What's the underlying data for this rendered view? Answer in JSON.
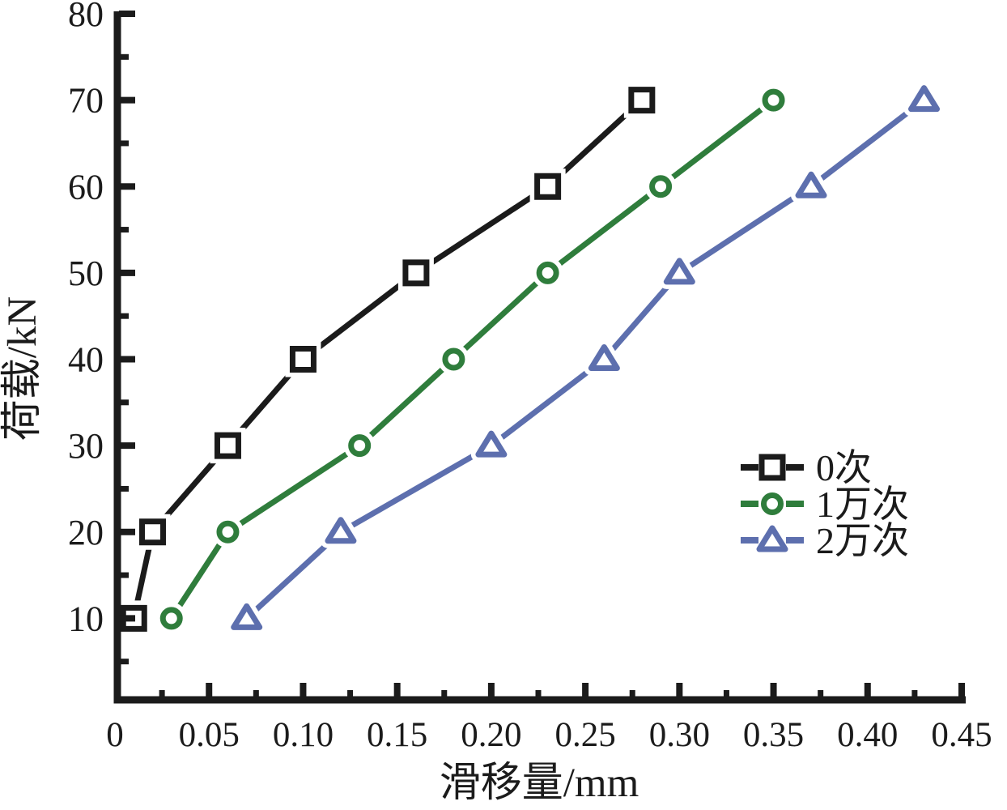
{
  "figure": {
    "background": "#ffffff"
  },
  "chart_data": {
    "type": "line",
    "title": "",
    "xlabel": "滑移量/mm",
    "ylabel": "荷载/kN",
    "xlim": [
      0,
      0.45
    ],
    "ylim": [
      0,
      80
    ],
    "grid": false,
    "legend_position": "right-center",
    "axis_color": "#1b1b1b",
    "x_tick_values": [
      0,
      0.05,
      0.1,
      0.15,
      0.2,
      0.25,
      0.3,
      0.35,
      0.4,
      0.45
    ],
    "x_tick_labels": [
      "0",
      "0.05",
      "0.10",
      "0.15",
      "0.20",
      "0.25",
      "0.30",
      "0.35",
      "0.40",
      "0.45"
    ],
    "x_minor_tick_values": [
      0.025,
      0.075,
      0.125,
      0.175,
      0.225,
      0.275,
      0.325,
      0.375,
      0.425
    ],
    "y_tick_values": [
      10,
      20,
      30,
      40,
      50,
      60,
      70,
      80
    ],
    "y_tick_labels": [
      "10",
      "20",
      "30",
      "40",
      "50",
      "60",
      "70",
      "80"
    ],
    "y_minor_tick_values": [
      5,
      15,
      25,
      35,
      45,
      55,
      65,
      75
    ],
    "series": [
      {
        "name": "0次",
        "marker": "square",
        "color": "#1b1b1b",
        "x": [
          0.01,
          0.02,
          0.06,
          0.1,
          0.16,
          0.23,
          0.28
        ],
        "y": [
          10,
          20,
          30,
          40,
          50,
          60,
          70
        ]
      },
      {
        "name": "1万次",
        "marker": "circle",
        "color": "#2f7d3c",
        "x": [
          0.03,
          0.06,
          0.13,
          0.18,
          0.23,
          0.29,
          0.35
        ],
        "y": [
          10,
          20,
          30,
          40,
          50,
          60,
          70
        ]
      },
      {
        "name": "2万次",
        "marker": "triangle",
        "color": "#5d6fae",
        "x": [
          0.07,
          0.12,
          0.2,
          0.26,
          0.3,
          0.37,
          0.43
        ],
        "y": [
          10,
          20,
          30,
          40,
          50,
          60,
          70
        ]
      }
    ]
  }
}
